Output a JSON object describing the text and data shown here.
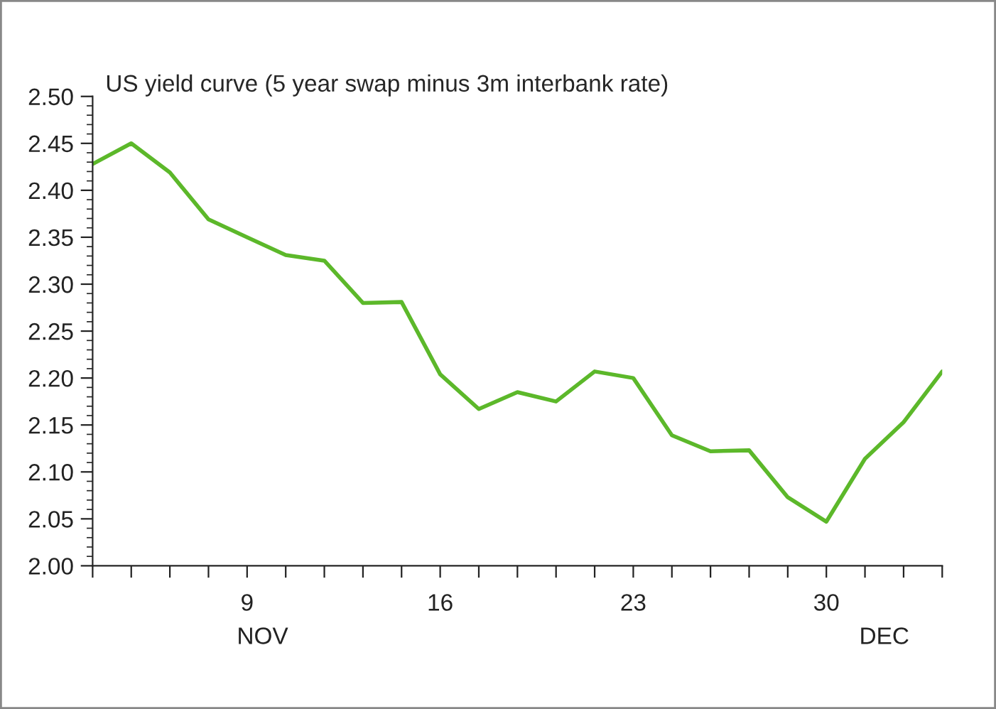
{
  "chart_data": {
    "type": "line",
    "title": "US yield curve (5 year swap minus 3m interbank rate)",
    "categories": [
      null,
      null,
      null,
      null,
      "9",
      null,
      null,
      null,
      null,
      "16",
      null,
      null,
      null,
      null,
      "23",
      null,
      null,
      null,
      null,
      "30",
      null,
      null,
      null
    ],
    "series": [
      {
        "color": "#5cb82a",
        "values": [
          2.428,
          2.45,
          2.419,
          2.369,
          2.35,
          2.331,
          2.325,
          2.28,
          2.281,
          2.204,
          2.167,
          2.185,
          2.175,
          2.207,
          2.2,
          2.139,
          2.122,
          2.123,
          2.073,
          2.047,
          2.114,
          2.153,
          2.207
        ]
      }
    ],
    "ylim": [
      2.0,
      2.5
    ],
    "yticks": [
      {
        "value": 2.0,
        "label": "2.00"
      },
      {
        "value": 2.05,
        "label": "2.05"
      },
      {
        "value": 2.1,
        "label": "2.10"
      },
      {
        "value": 2.15,
        "label": "2.15"
      },
      {
        "value": 2.2,
        "label": "2.20"
      },
      {
        "value": 2.25,
        "label": "2.25"
      },
      {
        "value": 2.3,
        "label": "2.30"
      },
      {
        "value": 2.35,
        "label": "2.35"
      },
      {
        "value": 2.4,
        "label": "2.40"
      },
      {
        "value": 2.45,
        "label": "2.45"
      },
      {
        "value": 2.5,
        "label": "2.50"
      }
    ],
    "annotations": [
      "NOV",
      "DEC"
    ],
    "grid": false,
    "legend": false,
    "marker": "none",
    "line_style": "solid"
  }
}
